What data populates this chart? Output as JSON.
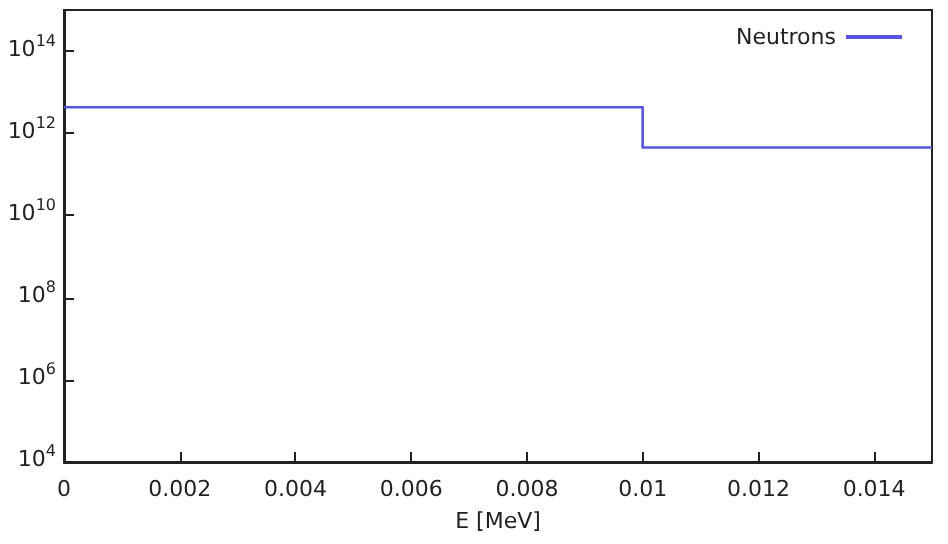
{
  "chart_data": {
    "type": "step",
    "xlabel": "E [MeV]",
    "x": [
      0,
      0.01,
      0.015
    ],
    "series": [
      {
        "name": "Neutrons",
        "color": "#5555dd",
        "values": [
          4300000000000.0,
          450000000000.0,
          450000000000.0
        ]
      }
    ],
    "xlim": [
      0,
      0.015
    ],
    "xticks": [
      0,
      0.002,
      0.004,
      0.006,
      0.008,
      0.01,
      0.012,
      0.014
    ],
    "ylim": [
      10000.0,
      1000000000000000.0
    ],
    "yticks": [
      {
        "value": 10000.0,
        "label": "10$^{4}$"
      },
      {
        "value": 1000000.0,
        "label": "10$^{6}$"
      },
      {
        "value": 100000000.0,
        "label": "10$^{8}$"
      },
      {
        "value": 10000000000.0,
        "label": "10$^{10}$"
      },
      {
        "value": 1000000000000.0,
        "label": "10$^{12}$"
      },
      {
        "value": 100000000000000.0,
        "label": "10$^{14}$"
      }
    ],
    "log": "y",
    "grid": false,
    "legend": "top right",
    "marker": "none",
    "line_style": "solid"
  }
}
